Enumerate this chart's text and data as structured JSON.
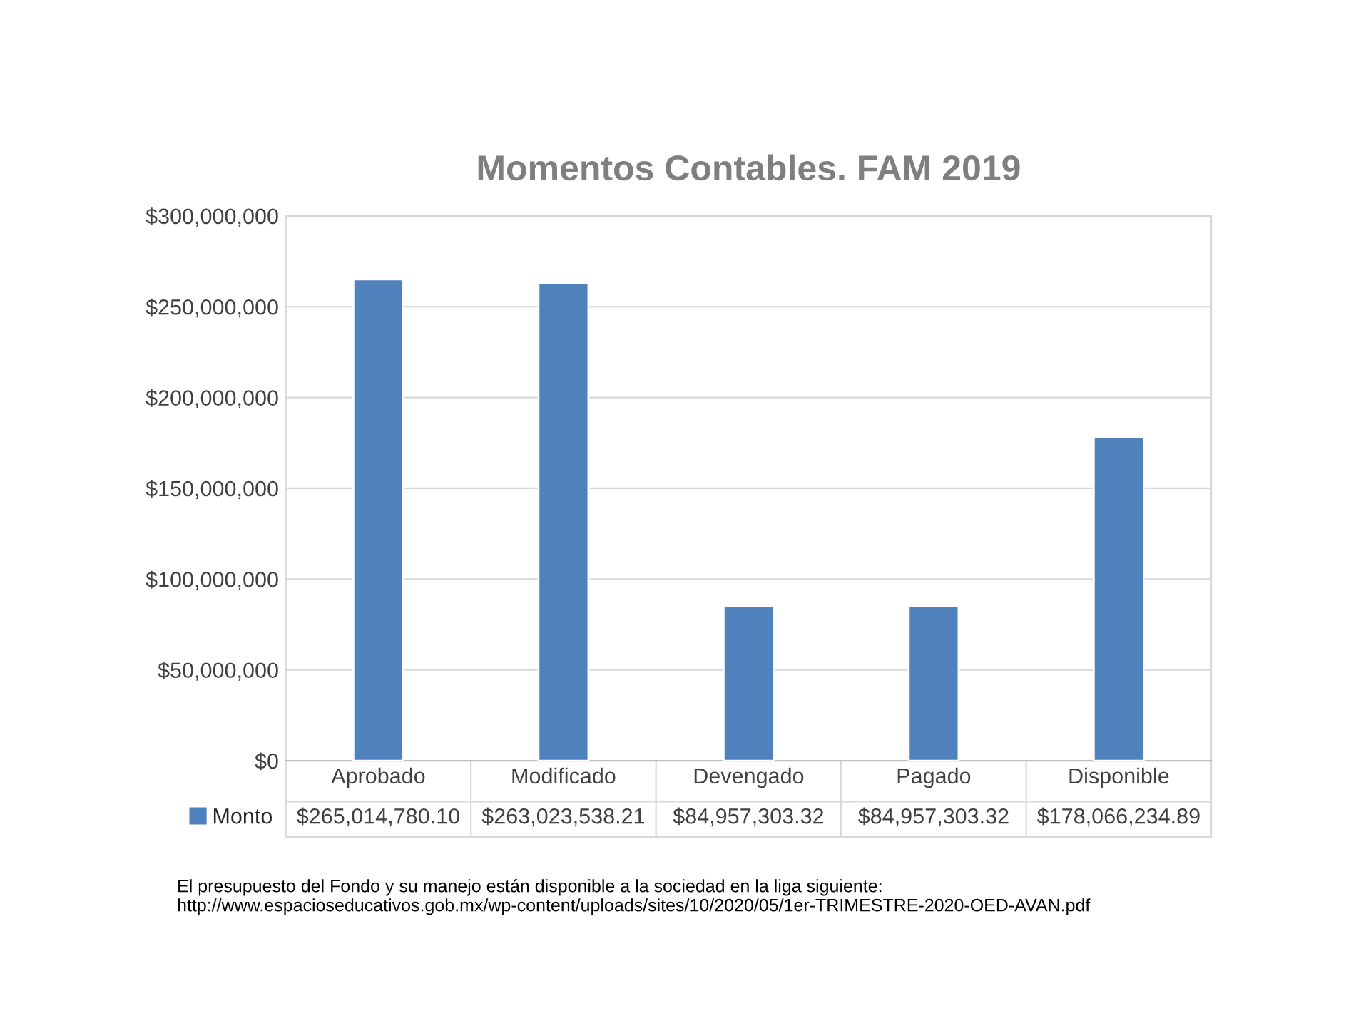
{
  "chart_data": {
    "type": "bar",
    "title": "Momentos Contables. FAM 2019",
    "categories": [
      "Aprobado",
      "Modificado",
      "Devengado",
      "Pagado",
      "Disponible"
    ],
    "series": [
      {
        "name": "Monto",
        "color": "#4f81bd",
        "values": [
          265014780.1,
          263023538.21,
          84957303.32,
          84957303.32,
          178066234.89
        ],
        "value_labels": [
          "$265,014,780.10",
          "$263,023,538.21",
          "$84,957,303.32",
          "$84,957,303.32",
          "$178,066,234.89"
        ]
      }
    ],
    "ylim": [
      0,
      300000000
    ],
    "yticks": [
      {
        "value": 0,
        "label": "$0"
      },
      {
        "value": 50000000,
        "label": "$50,000,000"
      },
      {
        "value": 100000000,
        "label": "$100,000,000"
      },
      {
        "value": 150000000,
        "label": "$150,000,000"
      },
      {
        "value": 200000000,
        "label": "$200,000,000"
      },
      {
        "value": 250000000,
        "label": "$250,000,000"
      },
      {
        "value": 300000000,
        "label": "$300,000,000"
      }
    ],
    "grid": "y",
    "legend": "bottom",
    "annotations": [
      "El presupuesto del Fondo y su manejo están disponible a la sociedad en la liga siguiente: http://www.espacioseducativos.gob.mx/wp-content/uploads/sites/10/2020/05/1er-TRIMESTRE-2020-OED-AVAN.pdf"
    ]
  }
}
